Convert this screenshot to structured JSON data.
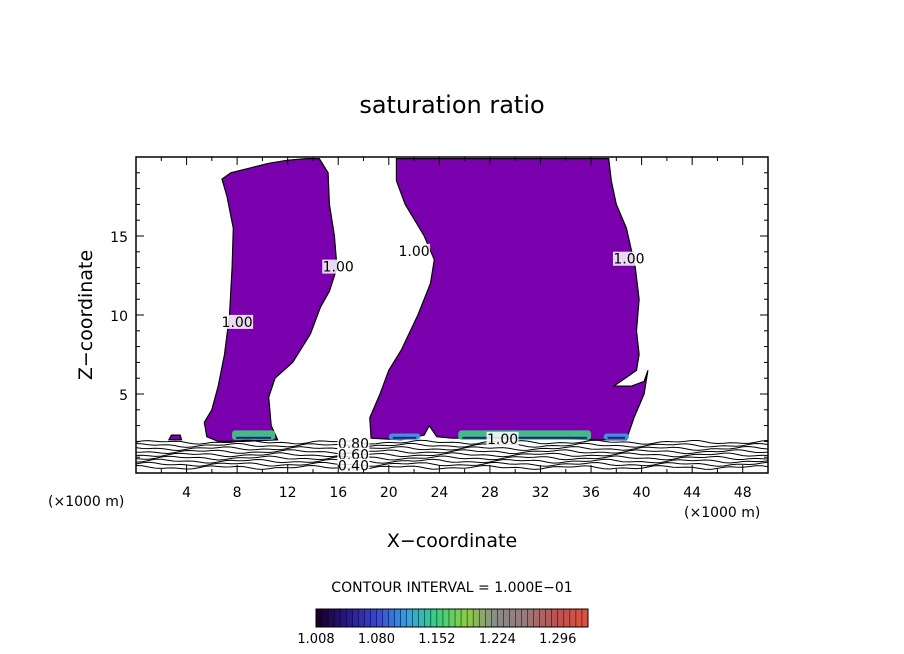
{
  "chart_data": {
    "type": "contour",
    "title": "saturation ratio",
    "xlabel": "X−coordinate",
    "ylabel": "Z−coordinate",
    "x_unit_left": "(×1000 m)",
    "x_unit_right": "(×1000 m)",
    "xlim": [
      0,
      50
    ],
    "ylim": [
      0,
      20
    ],
    "xticks": [
      4,
      8,
      12,
      16,
      20,
      24,
      28,
      32,
      36,
      40,
      44,
      48
    ],
    "yticks": [
      5,
      10,
      15
    ],
    "contour_interval_text": "CONTOUR INTERVAL = 1.000E−01",
    "contour_labels": [
      {
        "text": "1.00",
        "x": 16,
        "z": 13
      },
      {
        "text": "1.00",
        "x": 8,
        "z": 9.5
      },
      {
        "text": "1.00",
        "x": 22,
        "z": 14
      },
      {
        "text": "1.00",
        "x": 39,
        "z": 13.5
      },
      {
        "text": "1.00",
        "x": 29,
        "z": 2.1
      },
      {
        "text": "0.80",
        "x": 17.2,
        "z": 1.8
      },
      {
        "text": "0.60",
        "x": 17.2,
        "z": 1.1
      },
      {
        "text": "0.40",
        "x": 17.2,
        "z": 0.4
      }
    ],
    "colorbar": {
      "ticks": [
        "1.008",
        "1.080",
        "1.152",
        "1.224",
        "1.296"
      ],
      "range": [
        1.008,
        1.332
      ],
      "colors": [
        "#1a0030",
        "#2a1a8a",
        "#3a4ad0",
        "#3aa0e0",
        "#3ad080",
        "#8ad040",
        "#8a8a8a",
        "#9a7a7a",
        "#c05050",
        "#e05040"
      ]
    },
    "fill_color": "#7b00ad",
    "regions": [
      {
        "name": "left-cloud",
        "points": [
          [
            6.8,
            18.6
          ],
          [
            7.5,
            19.0
          ],
          [
            9.0,
            19.3
          ],
          [
            10.5,
            19.6
          ],
          [
            12.0,
            19.8
          ],
          [
            13.5,
            19.9
          ],
          [
            14.5,
            19.9
          ],
          [
            15.2,
            19.0
          ],
          [
            15.3,
            17.0
          ],
          [
            15.7,
            15.0
          ],
          [
            15.9,
            13.0
          ],
          [
            15.3,
            11.5
          ],
          [
            14.6,
            10.5
          ],
          [
            13.8,
            8.8
          ],
          [
            12.4,
            7.0
          ],
          [
            11.0,
            6.0
          ],
          [
            10.5,
            4.8
          ],
          [
            10.7,
            3.0
          ],
          [
            11.2,
            2.1
          ],
          [
            8.5,
            2.0
          ],
          [
            6.5,
            2.0
          ],
          [
            5.6,
            2.3
          ],
          [
            5.4,
            3.2
          ],
          [
            6.0,
            4.0
          ],
          [
            6.5,
            5.5
          ],
          [
            7.0,
            7.5
          ],
          [
            7.4,
            10.0
          ],
          [
            7.6,
            13.0
          ],
          [
            7.7,
            15.5
          ],
          [
            7.2,
            17.5
          ]
        ]
      },
      {
        "name": "right-cloud",
        "points": [
          [
            20.6,
            19.9
          ],
          [
            23.0,
            19.9
          ],
          [
            26.0,
            19.9
          ],
          [
            29.0,
            19.9
          ],
          [
            32.0,
            19.9
          ],
          [
            35.0,
            19.9
          ],
          [
            37.4,
            19.9
          ],
          [
            37.6,
            18.5
          ],
          [
            38.0,
            17.0
          ],
          [
            38.8,
            15.5
          ],
          [
            39.5,
            13.0
          ],
          [
            39.8,
            11.0
          ],
          [
            39.6,
            9.0
          ],
          [
            39.8,
            7.5
          ],
          [
            39.6,
            6.5
          ],
          [
            38.7,
            6.0
          ],
          [
            37.8,
            5.5
          ],
          [
            39.2,
            5.5
          ],
          [
            40.2,
            5.8
          ],
          [
            40.5,
            6.5
          ],
          [
            40.2,
            5.0
          ],
          [
            39.4,
            3.5
          ],
          [
            38.8,
            2.1
          ],
          [
            36.0,
            2.1
          ],
          [
            33.5,
            2.2
          ],
          [
            30.0,
            2.2
          ],
          [
            27.0,
            2.2
          ],
          [
            25.0,
            2.2
          ],
          [
            23.8,
            2.3
          ],
          [
            23.2,
            3.0
          ],
          [
            22.8,
            2.4
          ],
          [
            21.0,
            2.1
          ],
          [
            18.6,
            2.2
          ],
          [
            18.5,
            3.5
          ],
          [
            19.3,
            5.0
          ],
          [
            20.0,
            6.5
          ],
          [
            21.0,
            7.8
          ],
          [
            22.3,
            10.0
          ],
          [
            23.3,
            12.0
          ],
          [
            23.6,
            13.5
          ],
          [
            22.8,
            15.0
          ],
          [
            21.3,
            17.0
          ],
          [
            20.6,
            18.5
          ]
        ]
      },
      {
        "name": "small-cell",
        "points": [
          [
            2.6,
            2.1
          ],
          [
            3.6,
            2.1
          ],
          [
            3.5,
            2.4
          ],
          [
            2.8,
            2.4
          ]
        ]
      }
    ],
    "highlights": [
      {
        "x0": 7.6,
        "x1": 11.0,
        "z0": 2.1,
        "z1": 2.7,
        "color": "#3ad080"
      },
      {
        "x0": 20.0,
        "x1": 22.5,
        "z0": 2.1,
        "z1": 2.5,
        "color": "#3aa0e0"
      },
      {
        "x0": 25.5,
        "x1": 36.0,
        "z0": 2.1,
        "z1": 2.7,
        "color": "#3ad080"
      },
      {
        "x0": 37.0,
        "x1": 39.0,
        "z0": 2.1,
        "z1": 2.5,
        "color": "#3aa0e0"
      }
    ],
    "lower_contour_levels_z": [
      1.95,
      1.75,
      1.55,
      1.35,
      1.15,
      0.95,
      0.75,
      0.55,
      0.35
    ]
  }
}
